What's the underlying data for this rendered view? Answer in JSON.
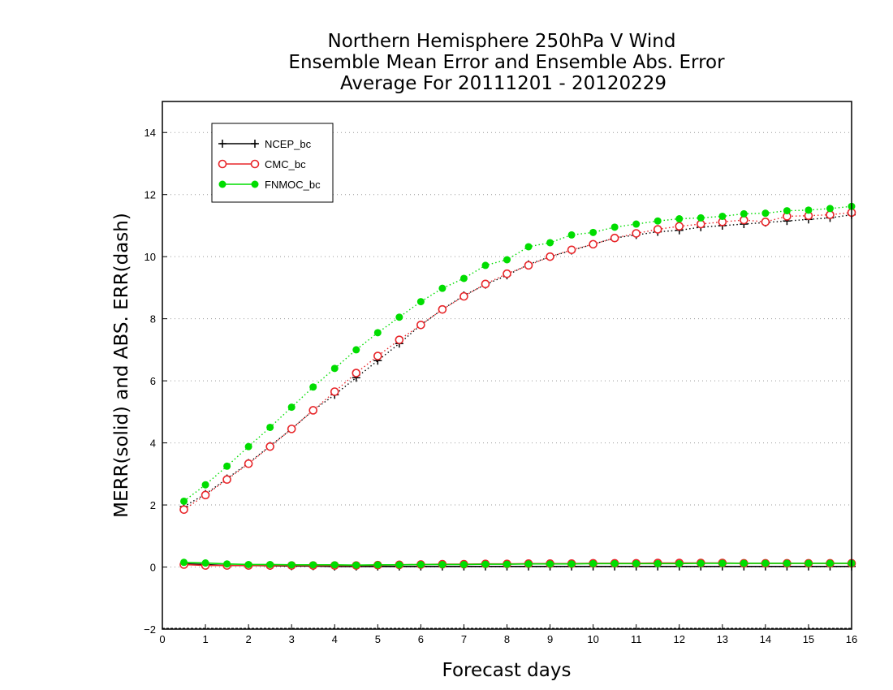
{
  "chart_data": {
    "type": "line",
    "title": [
      "Northern Hemisphere 250hPa V Wind",
      "Ensemble Mean Error and Ensemble Abs. Error",
      "Average For 20111201 - 20120229"
    ],
    "xlabel": "Forecast days",
    "ylabel": "MERR(solid) and ABS. ERR(dash)",
    "xlim": [
      0,
      16
    ],
    "ylim": [
      -2,
      15
    ],
    "xticks": [
      0,
      1,
      2,
      3,
      4,
      5,
      6,
      7,
      8,
      9,
      10,
      11,
      12,
      13,
      14,
      15,
      16
    ],
    "yticks": [
      -2,
      0,
      2,
      4,
      6,
      8,
      10,
      12,
      14
    ],
    "grid": "horizontal dotted",
    "legend_position": "top-left",
    "x": [
      0.5,
      1,
      1.5,
      2,
      2.5,
      3,
      3.5,
      4,
      4.5,
      5,
      5.5,
      6,
      6.5,
      7,
      7.5,
      8,
      8.5,
      9,
      9.5,
      10,
      10.5,
      11,
      11.5,
      12,
      12.5,
      13,
      13.5,
      14,
      14.5,
      15,
      15.5,
      16
    ],
    "series": [
      {
        "name": "NCEP_bc",
        "color": "#000000",
        "marker": "plus",
        "abs_err": [
          1.95,
          2.35,
          2.85,
          3.35,
          3.9,
          4.45,
          5.05,
          5.55,
          6.1,
          6.65,
          7.2,
          7.8,
          8.3,
          8.75,
          9.1,
          9.4,
          9.75,
          10.0,
          10.2,
          10.4,
          10.6,
          10.7,
          10.8,
          10.85,
          10.95,
          11.0,
          11.05,
          11.1,
          11.15,
          11.2,
          11.25,
          11.35
        ],
        "mean_err": [
          0.1,
          0.08,
          0.05,
          0.05,
          0.04,
          0.03,
          0.03,
          0.02,
          0.02,
          0.02,
          0.02,
          0.02,
          0.02,
          0.02,
          0.02,
          0.02,
          0.02,
          0.02,
          0.02,
          0.02,
          0.02,
          0.02,
          0.02,
          0.02,
          0.02,
          0.02,
          0.02,
          0.02,
          0.02,
          0.02,
          0.02,
          0.02
        ]
      },
      {
        "name": "CMC_bc",
        "color": "#e8262a",
        "marker": "open-circle",
        "abs_err": [
          1.85,
          2.32,
          2.82,
          3.33,
          3.88,
          4.45,
          5.05,
          5.65,
          6.25,
          6.8,
          7.32,
          7.8,
          8.3,
          8.72,
          9.12,
          9.45,
          9.72,
          10.0,
          10.22,
          10.4,
          10.6,
          10.75,
          10.88,
          10.98,
          11.05,
          11.12,
          11.18,
          11.12,
          11.3,
          11.32,
          11.35,
          11.42
        ],
        "mean_err": [
          0.08,
          0.05,
          0.05,
          0.05,
          0.05,
          0.05,
          0.05,
          0.05,
          0.05,
          0.06,
          0.07,
          0.08,
          0.09,
          0.09,
          0.1,
          0.1,
          0.11,
          0.11,
          0.11,
          0.12,
          0.12,
          0.12,
          0.13,
          0.13,
          0.13,
          0.13,
          0.12,
          0.12,
          0.12,
          0.12,
          0.12,
          0.12
        ]
      },
      {
        "name": "FNMOC_bc",
        "color": "#00dd00",
        "marker": "filled-circle",
        "abs_err": [
          2.12,
          2.65,
          3.25,
          3.88,
          4.5,
          5.15,
          5.8,
          6.4,
          7.0,
          7.55,
          8.05,
          8.55,
          8.98,
          9.3,
          9.72,
          9.9,
          10.32,
          10.45,
          10.7,
          10.78,
          10.95,
          11.05,
          11.15,
          11.22,
          11.25,
          11.3,
          11.38,
          11.4,
          11.48,
          11.5,
          11.55,
          11.62
        ],
        "mean_err": [
          0.15,
          0.13,
          0.1,
          0.08,
          0.08,
          0.07,
          0.07,
          0.07,
          0.06,
          0.07,
          0.07,
          0.08,
          0.08,
          0.08,
          0.09,
          0.09,
          0.1,
          0.1,
          0.1,
          0.11,
          0.11,
          0.11,
          0.11,
          0.11,
          0.12,
          0.12,
          0.12,
          0.12,
          0.12,
          0.12,
          0.12,
          0.12
        ]
      }
    ]
  }
}
